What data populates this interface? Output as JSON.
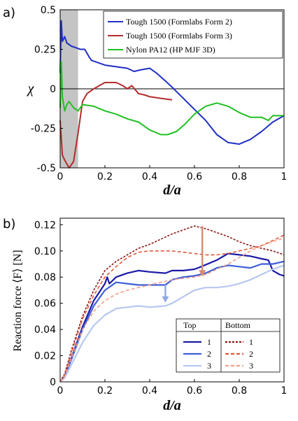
{
  "chart_data": [
    {
      "panel_label": "a)",
      "type": "line",
      "xlabel": "d/a",
      "ylabel": "χ",
      "xlim": [
        0,
        1
      ],
      "ylim": [
        -0.5,
        0.5
      ],
      "x_ticks": [
        "0",
        "0.2",
        "0.4",
        "0.6",
        "0.8",
        "1"
      ],
      "y_ticks": [
        "0.5",
        "0.25",
        "0",
        "-0.25",
        "-0.5"
      ],
      "shaded_region": [
        0,
        0.08
      ],
      "zero_line": true,
      "legend_position": "top-right",
      "series": [
        {
          "name": "Tough 1500 (Formlabs Form 2)",
          "color": "#1f2fc4",
          "x": [
            0,
            0.005,
            0.01,
            0.02,
            0.03,
            0.05,
            0.07,
            0.09,
            0.11,
            0.13,
            0.14,
            0.16,
            0.2,
            0.25,
            0.3,
            0.33,
            0.36,
            0.4,
            0.43,
            0.47,
            0.5,
            0.55,
            0.6,
            0.65,
            0.7,
            0.75,
            0.8,
            0.85,
            0.9,
            0.95,
            1
          ],
          "y": [
            0.1,
            0.43,
            0.3,
            0.33,
            0.29,
            0.27,
            0.26,
            0.25,
            0.25,
            0.2,
            0.18,
            0.17,
            0.15,
            0.14,
            0.13,
            0.11,
            0.12,
            0.13,
            0.1,
            0.05,
            0.01,
            -0.06,
            -0.13,
            -0.2,
            -0.29,
            -0.34,
            -0.35,
            -0.32,
            -0.27,
            -0.21,
            -0.17
          ]
        },
        {
          "name": "Tough 1500 (Formlabs Form 3)",
          "color": "#b32c2c",
          "x": [
            0,
            0.01,
            0.02,
            0.04,
            0.06,
            0.08,
            0.1,
            0.12,
            0.15,
            0.2,
            0.25,
            0.28,
            0.3,
            0.32,
            0.35,
            0.38,
            0.4,
            0.45,
            0.5
          ],
          "y": [
            -0.2,
            -0.42,
            -0.45,
            -0.5,
            -0.46,
            -0.28,
            -0.08,
            -0.03,
            0,
            0.04,
            0.04,
            0.02,
            0.0,
            0.02,
            -0.03,
            -0.04,
            -0.05,
            -0.06,
            -0.07
          ]
        },
        {
          "name": "Nylon PA12 (HP MJF 3D)",
          "color": "#21c021",
          "x": [
            0,
            0.005,
            0.01,
            0.02,
            0.03,
            0.04,
            0.06,
            0.08,
            0.1,
            0.15,
            0.2,
            0.25,
            0.3,
            0.35,
            0.4,
            0.45,
            0.48,
            0.52,
            0.56,
            0.6,
            0.65,
            0.7,
            0.75,
            0.8,
            0.85,
            0.9,
            0.93,
            0.95,
            1
          ],
          "y": [
            -0.12,
            0.17,
            -0.05,
            -0.14,
            -0.1,
            -0.08,
            -0.12,
            -0.14,
            -0.1,
            -0.11,
            -0.14,
            -0.16,
            -0.19,
            -0.21,
            -0.26,
            -0.29,
            -0.29,
            -0.27,
            -0.22,
            -0.16,
            -0.11,
            -0.09,
            -0.11,
            -0.15,
            -0.18,
            -0.18,
            -0.2,
            -0.17,
            -0.17
          ]
        }
      ]
    },
    {
      "panel_label": "b)",
      "type": "line",
      "xlabel": "d/a",
      "ylabel": "Reaction force ⟨F⟩ [N]",
      "xlim": [
        0,
        1
      ],
      "ylim": [
        0,
        0.125
      ],
      "x_ticks": [
        "0",
        "0.2",
        "0.4",
        "0.6",
        "0.8",
        "1"
      ],
      "y_ticks": [
        "0.12",
        "0.10",
        "0.08",
        "0.06",
        "0.04",
        "0.02",
        "0"
      ],
      "legend_position": "bottom-right",
      "legend_groups": [
        "Top",
        "Bottom"
      ],
      "legend_labels": [
        "1",
        "2",
        "3"
      ],
      "arrows": [
        {
          "x": 0.635,
          "from": 0.119,
          "to": 0.081,
          "color": "#d98a70"
        },
        {
          "x": 0.47,
          "from": 0.074,
          "to": 0.061,
          "color": "#8fa8e6"
        }
      ],
      "series": [
        {
          "name": "1",
          "group": "Top",
          "color": "#1a1aa8",
          "style": "solid",
          "x": [
            0,
            0.02,
            0.05,
            0.1,
            0.15,
            0.2,
            0.21,
            0.22,
            0.25,
            0.3,
            0.35,
            0.4,
            0.47,
            0.5,
            0.55,
            0.6,
            0.63,
            0.7,
            0.75,
            0.8,
            0.85,
            0.9,
            0.93,
            0.95,
            0.98,
            1
          ],
          "y": [
            0,
            0.004,
            0.018,
            0.042,
            0.062,
            0.075,
            0.08,
            0.075,
            0.08,
            0.083,
            0.085,
            0.084,
            0.083,
            0.085,
            0.085,
            0.086,
            0.088,
            0.093,
            0.098,
            0.097,
            0.096,
            0.094,
            0.093,
            0.085,
            0.082,
            0.081
          ]
        },
        {
          "name": "2",
          "group": "Top",
          "color": "#3e5fd8",
          "style": "solid",
          "x": [
            0,
            0.02,
            0.05,
            0.1,
            0.15,
            0.2,
            0.25,
            0.3,
            0.35,
            0.4,
            0.47,
            0.5,
            0.55,
            0.6,
            0.65,
            0.7,
            0.75,
            0.8,
            0.85,
            0.9,
            0.95,
            1
          ],
          "y": [
            0,
            0.004,
            0.017,
            0.04,
            0.058,
            0.07,
            0.076,
            0.075,
            0.074,
            0.074,
            0.074,
            0.078,
            0.08,
            0.081,
            0.083,
            0.087,
            0.089,
            0.088,
            0.087,
            0.09,
            0.09,
            0.092
          ]
        },
        {
          "name": "3",
          "group": "Top",
          "color": "#b7c7ef",
          "style": "solid",
          "x": [
            0,
            0.02,
            0.05,
            0.1,
            0.15,
            0.2,
            0.25,
            0.3,
            0.35,
            0.4,
            0.47,
            0.5,
            0.55,
            0.6,
            0.65,
            0.7,
            0.75,
            0.8,
            0.85,
            0.9,
            0.95,
            1
          ],
          "y": [
            0,
            0.003,
            0.013,
            0.03,
            0.043,
            0.051,
            0.056,
            0.057,
            0.058,
            0.057,
            0.058,
            0.06,
            0.065,
            0.07,
            0.072,
            0.072,
            0.073,
            0.075,
            0.078,
            0.082,
            0.086,
            0.089
          ]
        },
        {
          "name": "1",
          "group": "Bottom",
          "color": "#8c1515",
          "style": "dotted",
          "x": [
            0,
            0.02,
            0.05,
            0.1,
            0.15,
            0.2,
            0.25,
            0.3,
            0.35,
            0.4,
            0.45,
            0.5,
            0.55,
            0.6,
            0.65,
            0.7,
            0.75,
            0.8,
            0.85,
            0.9,
            0.95,
            1
          ],
          "y": [
            0,
            0.006,
            0.024,
            0.05,
            0.07,
            0.085,
            0.092,
            0.097,
            0.102,
            0.105,
            0.109,
            0.113,
            0.116,
            0.119,
            0.117,
            0.114,
            0.111,
            0.107,
            0.104,
            0.102,
            0.1,
            0.097
          ]
        },
        {
          "name": "2",
          "group": "Bottom",
          "color": "#e05a3c",
          "style": "dashed",
          "x": [
            0,
            0.02,
            0.05,
            0.1,
            0.15,
            0.2,
            0.25,
            0.3,
            0.35,
            0.4,
            0.45,
            0.5,
            0.55,
            0.6,
            0.65,
            0.7,
            0.75,
            0.8,
            0.85,
            0.9,
            0.95,
            1
          ],
          "y": [
            0,
            0.005,
            0.022,
            0.048,
            0.066,
            0.08,
            0.088,
            0.095,
            0.099,
            0.1,
            0.1,
            0.1,
            0.099,
            0.098,
            0.097,
            0.097,
            0.098,
            0.1,
            0.102,
            0.104,
            0.108,
            0.112
          ]
        },
        {
          "name": "3",
          "group": "Bottom",
          "color": "#f0a08a",
          "style": "dashed",
          "x": [
            0,
            0.02,
            0.05,
            0.1,
            0.15,
            0.2,
            0.25,
            0.3,
            0.35,
            0.4,
            0.45,
            0.5,
            0.55,
            0.6,
            0.65,
            0.7,
            0.75,
            0.8,
            0.85,
            0.9,
            0.95,
            1
          ],
          "y": [
            0,
            0.004,
            0.018,
            0.04,
            0.054,
            0.062,
            0.067,
            0.07,
            0.072,
            0.074,
            0.076,
            0.078,
            0.079,
            0.08,
            0.082,
            0.086,
            0.09,
            0.095,
            0.1,
            0.104,
            0.107,
            0.11
          ]
        }
      ]
    }
  ]
}
